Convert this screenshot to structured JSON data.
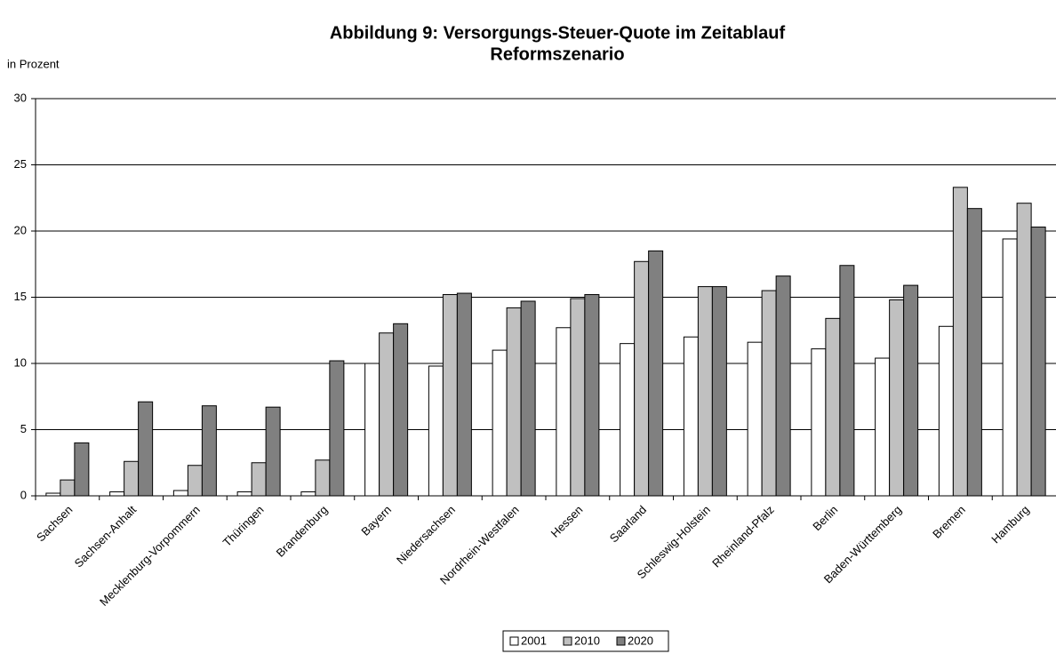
{
  "chart_data": {
    "type": "bar",
    "title": "Abbildung 9: Versorgungs-Steuer-Quote im Zeitablauf",
    "subtitle": "Reformszenario",
    "y_label": "in Prozent",
    "categories": [
      "Sachsen",
      "Sachsen-Anhalt",
      "Mecklenburg-Vorpommern",
      "Thüringen",
      "Brandenburg",
      "Bayern",
      "Niedersachsen",
      "Nordrhein-Westfalen",
      "Hessen",
      "Saarland",
      "Schleswig-Holstein",
      "Rheinland-Pfalz",
      "Berlin",
      "Baden-Württemberg",
      "Bremen",
      "Hamburg"
    ],
    "series": [
      {
        "name": "2001",
        "color": "#ffffff",
        "values": [
          0.2,
          0.3,
          0.4,
          0.3,
          0.3,
          10.0,
          9.8,
          11.0,
          12.7,
          11.5,
          12.0,
          11.6,
          11.1,
          10.4,
          12.8,
          19.4
        ]
      },
      {
        "name": "2010",
        "color": "#c0c0c0",
        "values": [
          1.2,
          2.6,
          2.3,
          2.5,
          2.7,
          12.3,
          15.2,
          14.2,
          14.9,
          17.7,
          15.8,
          15.5,
          13.4,
          14.8,
          23.3,
          22.1
        ]
      },
      {
        "name": "2020",
        "color": "#808080",
        "values": [
          4.0,
          7.1,
          6.8,
          6.7,
          10.2,
          13.0,
          15.3,
          14.7,
          15.2,
          18.5,
          15.8,
          16.6,
          17.4,
          15.9,
          21.7,
          20.3
        ]
      }
    ],
    "ylim": [
      0,
      30
    ],
    "yticks": [
      0,
      5,
      10,
      15,
      20,
      25,
      30
    ],
    "grid": true,
    "legend": "bottom"
  }
}
